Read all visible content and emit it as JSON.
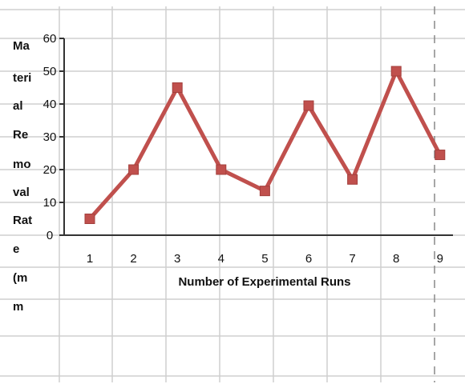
{
  "chart_data": {
    "type": "line",
    "x": [
      "1",
      "2",
      "3",
      "4",
      "5",
      "6",
      "7",
      "8",
      "9"
    ],
    "series": [
      {
        "values": [
          5,
          20,
          45,
          20,
          13.5,
          39.5,
          17,
          50,
          24.5
        ]
      }
    ],
    "xlabel": "Number of Experimental Runs",
    "ylabel_fragments": [
      "Ma",
      "teri",
      "al",
      "Re",
      "mo",
      "val",
      "Rat",
      "e",
      "(m",
      "m"
    ],
    "yticks": [
      "0",
      "10",
      "20",
      "30",
      "40",
      "50",
      "60"
    ],
    "ylim": [
      0,
      60
    ],
    "grid": true,
    "legend": "none",
    "colors": {
      "line": "#c0504d",
      "grid": "#cfcfcf",
      "axis": "#333333"
    }
  }
}
